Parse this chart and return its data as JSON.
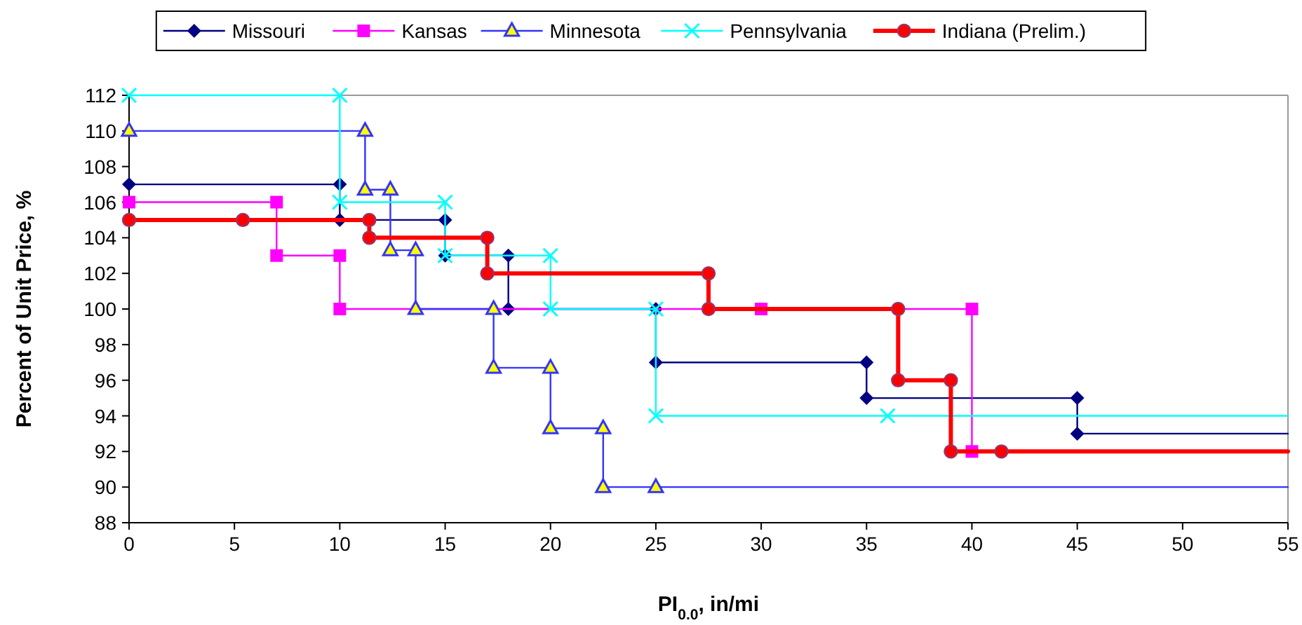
{
  "chart_data": {
    "type": "line",
    "xlabel": "PI$_{0.0}$, in/mi",
    "ylabel": "Percent of Unit Price, %",
    "xlim": [
      0,
      55
    ],
    "xticks": [
      0,
      5,
      10,
      15,
      20,
      25,
      30,
      35,
      40,
      45,
      50,
      55
    ],
    "ylim": [
      88,
      112
    ],
    "yticks": [
      88,
      90,
      92,
      94,
      96,
      98,
      100,
      102,
      104,
      106,
      108,
      110,
      112
    ],
    "grid": false,
    "legend": "top",
    "line_style": "solid",
    "series": [
      {
        "name": "Missouri",
        "color": "#000080",
        "marker": "diamond",
        "x": [
          0,
          10,
          10,
          15,
          15,
          18,
          18,
          25,
          25,
          35,
          35,
          45,
          45,
          55
        ],
        "values": [
          107,
          107,
          105,
          105,
          103,
          103,
          100,
          100,
          97,
          97,
          95,
          95,
          93,
          93
        ]
      },
      {
        "name": "Kansas",
        "color": "#ff00ff",
        "marker": "square",
        "x": [
          0,
          7,
          7,
          10,
          10,
          30,
          40,
          40
        ],
        "values": [
          106,
          106,
          103,
          103,
          100,
          100,
          100,
          92
        ]
      },
      {
        "name": "Minnesota",
        "color": "#3333ff",
        "marker": "triangle",
        "x": [
          0,
          11.2,
          11.2,
          12.4,
          12.4,
          13.6,
          13.6,
          17.3,
          17.3,
          20,
          20,
          22.5,
          22.5,
          25,
          55
        ],
        "values": [
          110,
          110,
          106.7,
          106.7,
          103.3,
          103.3,
          100,
          100,
          96.7,
          96.7,
          93.3,
          93.3,
          90,
          90,
          90
        ]
      },
      {
        "name": "Pennsylvania",
        "color": "#00ffff",
        "marker": "cross",
        "x": [
          0,
          10,
          10,
          15,
          15,
          20,
          20,
          25,
          25,
          36,
          55
        ],
        "values": [
          112,
          112,
          106,
          106,
          103,
          103,
          100,
          100,
          94,
          94,
          94
        ]
      },
      {
        "name": "Indiana (Prelim.)",
        "color": "#ff0000",
        "marker": "circle",
        "x": [
          0,
          5.4,
          11.4,
          11.4,
          17,
          17,
          27.5,
          27.5,
          36.5,
          36.5,
          39,
          39,
          41.4,
          55
        ],
        "values": [
          105,
          105,
          105,
          104,
          104,
          102,
          102,
          100,
          100,
          96,
          96,
          92,
          92,
          92
        ]
      }
    ]
  }
}
